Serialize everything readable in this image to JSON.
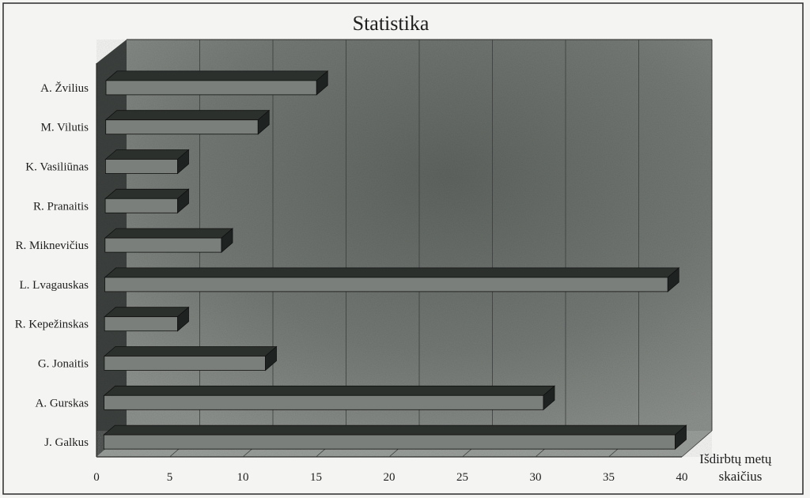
{
  "chart_data": {
    "type": "bar",
    "orientation": "horizontal",
    "title": "Statistika",
    "xlabel_lines": [
      "Išdirbtų metų",
      "skaičius"
    ],
    "xlim": [
      0,
      40
    ],
    "x_ticks": [
      0,
      5,
      10,
      15,
      20,
      25,
      30,
      35,
      40
    ],
    "grid": true,
    "legend": "none",
    "categories": [
      "A. Žvilius",
      "M. Vilutis",
      "K. Vasiliūnas",
      "R. Pranaitis",
      "R. Miknevičius",
      "L. Lvagauskas",
      "R. Kepežinskas",
      "G. Jonaitis",
      "A.  Gurskas",
      "J. Galkus"
    ],
    "values": [
      14.5,
      10.5,
      5,
      5,
      8,
      38.5,
      5,
      11,
      30,
      39
    ],
    "colors": {
      "bar_face": "#7a7f7b",
      "bar_top": "#2b302d",
      "bar_side": "#1e2220",
      "wall": "#7e837f",
      "floor": "#9a9e9a",
      "gridline": "#3a3d3b"
    }
  }
}
